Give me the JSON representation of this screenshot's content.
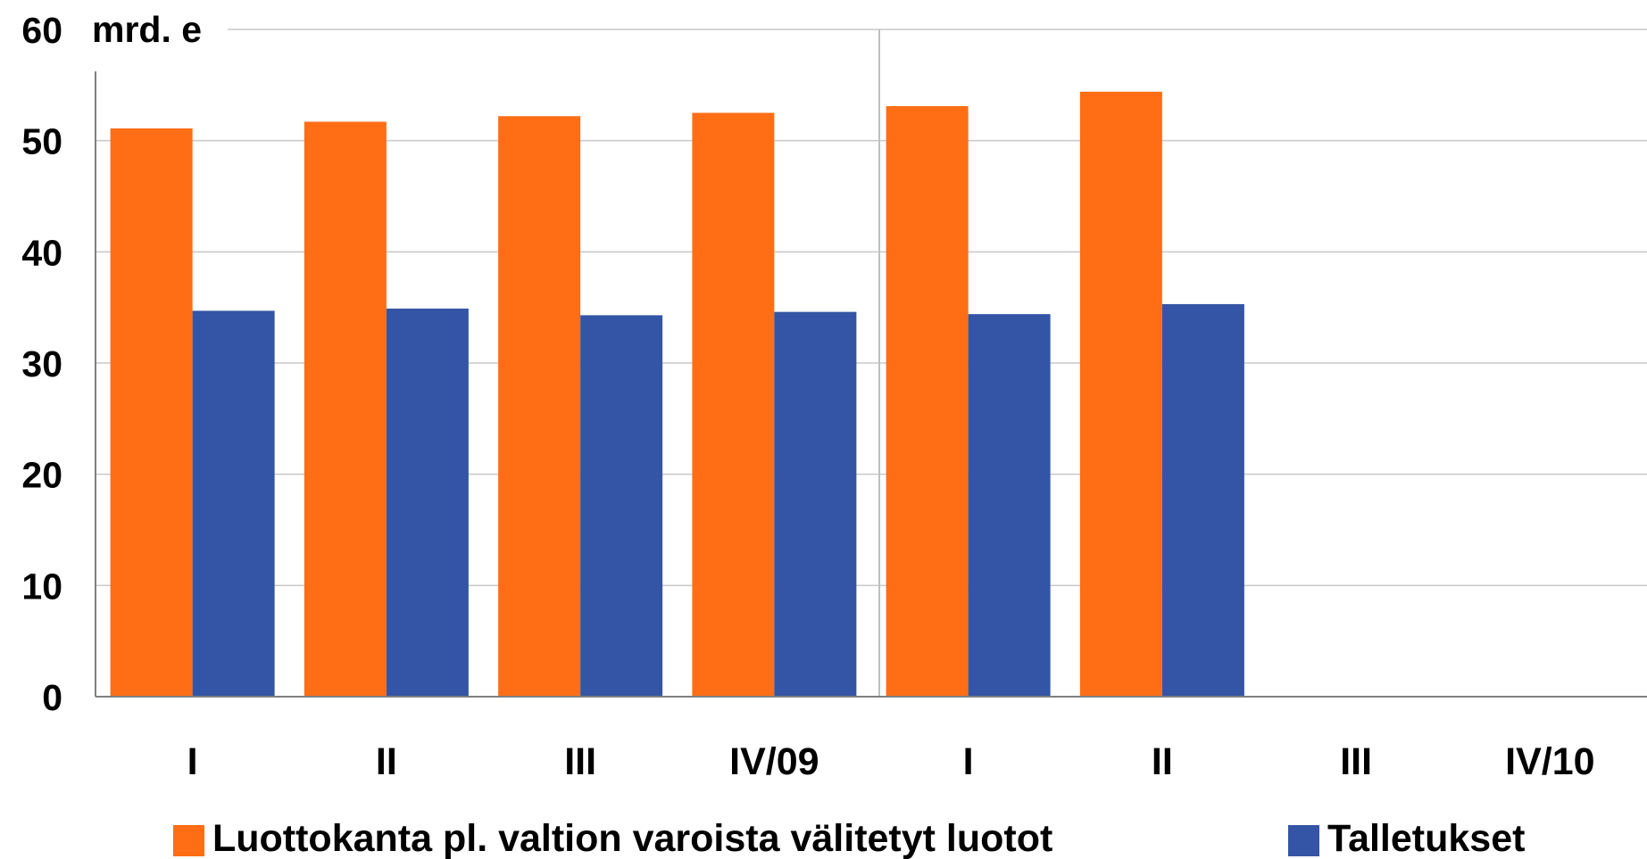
{
  "chart_data": {
    "type": "bar",
    "unit_label": "mrd. e",
    "categories": [
      "I",
      "II",
      "III",
      "IV/09",
      "I",
      "II",
      "III",
      "IV/10"
    ],
    "series": [
      {
        "name": "Luottokanta pl. valtion varoista välitetyt luotot",
        "color": "#ff6d14",
        "values": [
          51.1,
          51.7,
          52.2,
          52.5,
          53.1,
          54.4,
          null,
          null
        ]
      },
      {
        "name": "Talletukset",
        "color": "#3455a5",
        "values": [
          34.7,
          34.9,
          34.3,
          34.6,
          34.4,
          35.3,
          null,
          null
        ]
      }
    ],
    "ylim": [
      0,
      60
    ],
    "yticks": [
      "0",
      "10",
      "20",
      "30",
      "40",
      "50",
      "60"
    ],
    "grid": true,
    "legend_position": "bottom"
  }
}
